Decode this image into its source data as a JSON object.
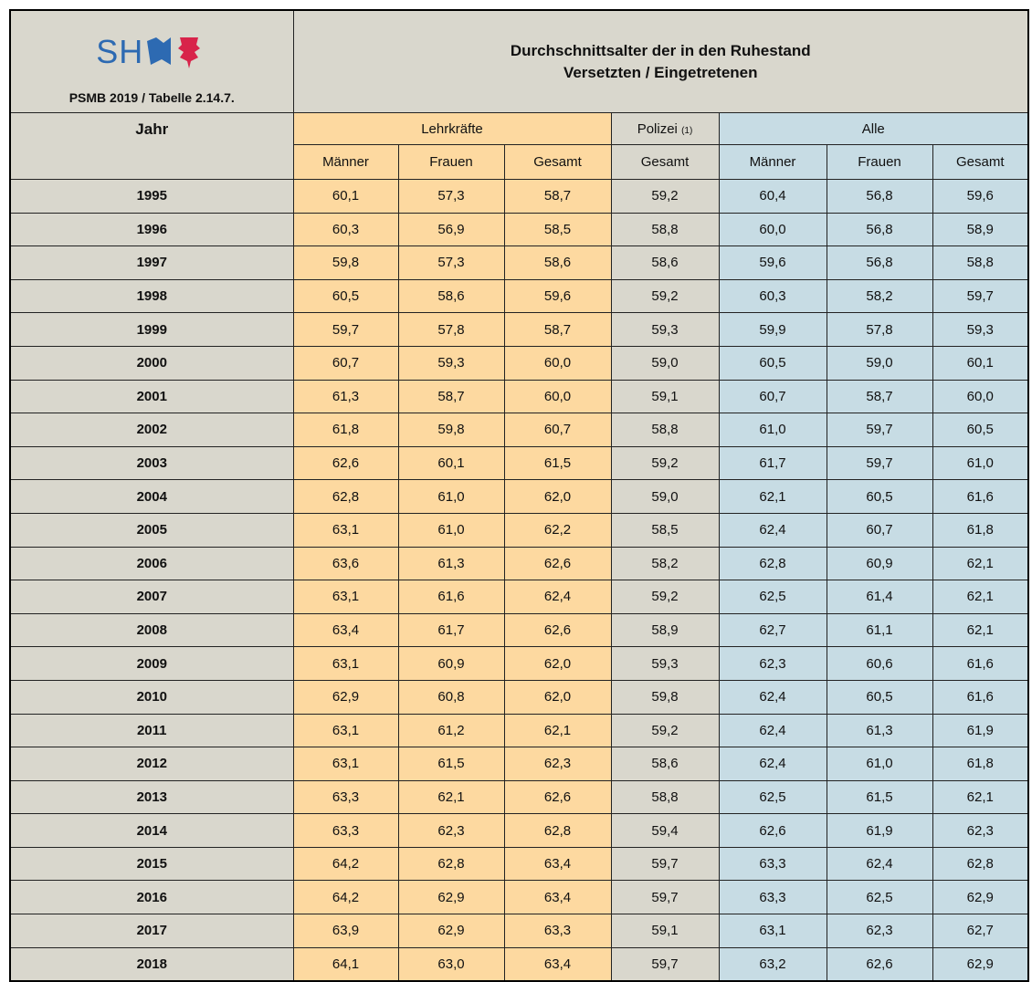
{
  "header": {
    "logo_text": "SH",
    "caption": "PSMB 2019 / Tabelle 2.14.7.",
    "title_lines": [
      "Durchschnittsalter der in den Ruhestand",
      "Versetzten / Eingetretenen"
    ]
  },
  "table": {
    "row_header": "Jahr",
    "groups": [
      {
        "label": "Lehrkräfte"
      },
      {
        "label": "Polizei",
        "note": "(1)"
      },
      {
        "label": "Alle"
      }
    ],
    "subheaders": [
      "Männer",
      "Frauen",
      "Gesamt",
      "Gesamt",
      "Männer",
      "Frauen",
      "Gesamt"
    ],
    "rows": [
      [
        "1995",
        "60,1",
        "57,3",
        "58,7",
        "59,2",
        "60,4",
        "56,8",
        "59,6"
      ],
      [
        "1996",
        "60,3",
        "56,9",
        "58,5",
        "58,8",
        "60,0",
        "56,8",
        "58,9"
      ],
      [
        "1997",
        "59,8",
        "57,3",
        "58,6",
        "58,6",
        "59,6",
        "56,8",
        "58,8"
      ],
      [
        "1998",
        "60,5",
        "58,6",
        "59,6",
        "59,2",
        "60,3",
        "58,2",
        "59,7"
      ],
      [
        "1999",
        "59,7",
        "57,8",
        "58,7",
        "59,3",
        "59,9",
        "57,8",
        "59,3"
      ],
      [
        "2000",
        "60,7",
        "59,3",
        "60,0",
        "59,0",
        "60,5",
        "59,0",
        "60,1"
      ],
      [
        "2001",
        "61,3",
        "58,7",
        "60,0",
        "59,1",
        "60,7",
        "58,7",
        "60,0"
      ],
      [
        "2002",
        "61,8",
        "59,8",
        "60,7",
        "58,8",
        "61,0",
        "59,7",
        "60,5"
      ],
      [
        "2003",
        "62,6",
        "60,1",
        "61,5",
        "59,2",
        "61,7",
        "59,7",
        "61,0"
      ],
      [
        "2004",
        "62,8",
        "61,0",
        "62,0",
        "59,0",
        "62,1",
        "60,5",
        "61,6"
      ],
      [
        "2005",
        "63,1",
        "61,0",
        "62,2",
        "58,5",
        "62,4",
        "60,7",
        "61,8"
      ],
      [
        "2006",
        "63,6",
        "61,3",
        "62,6",
        "58,2",
        "62,8",
        "60,9",
        "62,1"
      ],
      [
        "2007",
        "63,1",
        "61,6",
        "62,4",
        "59,2",
        "62,5",
        "61,4",
        "62,1"
      ],
      [
        "2008",
        "63,4",
        "61,7",
        "62,6",
        "58,9",
        "62,7",
        "61,1",
        "62,1"
      ],
      [
        "2009",
        "63,1",
        "60,9",
        "62,0",
        "59,3",
        "62,3",
        "60,6",
        "61,6"
      ],
      [
        "2010",
        "62,9",
        "60,8",
        "62,0",
        "59,8",
        "62,4",
        "60,5",
        "61,6"
      ],
      [
        "2011",
        "63,1",
        "61,2",
        "62,1",
        "59,2",
        "62,4",
        "61,3",
        "61,9"
      ],
      [
        "2012",
        "63,1",
        "61,5",
        "62,3",
        "58,6",
        "62,4",
        "61,0",
        "61,8"
      ],
      [
        "2013",
        "63,3",
        "62,1",
        "62,6",
        "58,8",
        "62,5",
        "61,5",
        "62,1"
      ],
      [
        "2014",
        "63,3",
        "62,3",
        "62,8",
        "59,4",
        "62,6",
        "61,9",
        "62,3"
      ],
      [
        "2015",
        "64,2",
        "62,8",
        "63,4",
        "59,7",
        "63,3",
        "62,4",
        "62,8"
      ],
      [
        "2016",
        "64,2",
        "62,9",
        "63,4",
        "59,7",
        "63,3",
        "62,5",
        "62,9"
      ],
      [
        "2017",
        "63,9",
        "62,9",
        "63,3",
        "59,1",
        "63,1",
        "62,3",
        "62,7"
      ],
      [
        "2018",
        "64,1",
        "63,0",
        "63,4",
        "59,7",
        "63,2",
        "62,6",
        "62,9"
      ]
    ]
  }
}
